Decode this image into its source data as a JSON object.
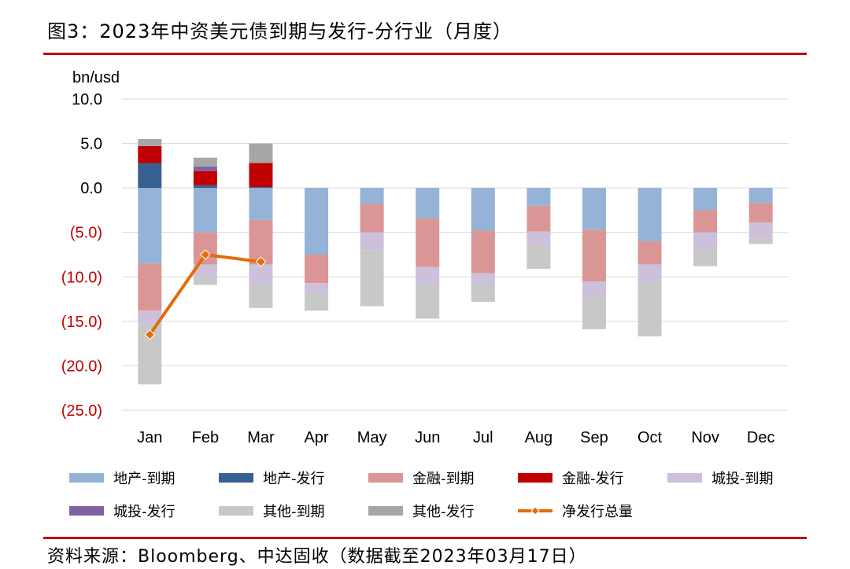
{
  "title": "图3：2023年中资美元债到期与发行-分行业（月度）",
  "source": "资料来源：Bloomberg、中达固收（数据截至2023年03月17日）",
  "chart_data": {
    "type": "bar",
    "stacked": true,
    "unit": "bn/usd",
    "ylim": [
      -25,
      10
    ],
    "yticks": [
      10,
      5,
      0,
      -5,
      -10,
      -15,
      -20,
      -25
    ],
    "ytick_labels": [
      "10.0",
      "5.0",
      "0.0",
      "(5.0)",
      "(10.0)",
      "(15.0)",
      "(20.0)",
      "(25.0)"
    ],
    "categories": [
      "Jan",
      "Feb",
      "Mar",
      "Apr",
      "May",
      "Jun",
      "Jul",
      "Aug",
      "Sep",
      "Oct",
      "Nov",
      "Dec"
    ],
    "grid": true,
    "legend_position": "bottom",
    "series": [
      {
        "name": "地产-到期",
        "color": "#95b3d7",
        "values": [
          -8.5,
          -5.0,
          -3.6,
          -7.5,
          -1.8,
          -3.4,
          -4.8,
          -2.0,
          -4.7,
          -6.0,
          -2.5,
          -1.7
        ]
      },
      {
        "name": "地产-发行",
        "color": "#376092",
        "values": [
          2.8,
          0.3,
          0.1,
          0,
          0,
          0,
          0,
          0,
          0,
          0,
          0,
          0
        ]
      },
      {
        "name": "金融-到期",
        "color": "#da9694",
        "values": [
          -5.3,
          -3.6,
          -5.0,
          -3.2,
          -3.2,
          -5.5,
          -4.8,
          -2.9,
          -5.8,
          -2.6,
          -2.5,
          -2.2
        ]
      },
      {
        "name": "金融-发行",
        "color": "#c00000",
        "values": [
          1.9,
          1.6,
          2.7,
          0,
          0,
          0,
          0,
          0,
          0,
          0,
          0,
          0
        ]
      },
      {
        "name": "城投-到期",
        "color": "#ccc0da",
        "values": [
          -1.5,
          -1.3,
          -2.2,
          -1.1,
          -2.0,
          -1.9,
          -1.3,
          -1.5,
          -1.8,
          -2.0,
          -1.8,
          -1.8
        ]
      },
      {
        "name": "城投-发行",
        "color": "#8064a2",
        "values": [
          0,
          0.5,
          0,
          0,
          0,
          0,
          0,
          0,
          0,
          0,
          0,
          0
        ]
      },
      {
        "name": "其他-到期",
        "color": "#c8c8c8",
        "values": [
          -6.8,
          -1.0,
          -2.7,
          -2.0,
          -6.3,
          -3.9,
          -1.9,
          -2.7,
          -3.6,
          -6.1,
          -2.0,
          -0.6
        ]
      },
      {
        "name": "其他-发行",
        "color": "#a6a6a6",
        "values": [
          0.8,
          1.0,
          2.2,
          0,
          0,
          0,
          0,
          0,
          0,
          0,
          0,
          0
        ]
      }
    ],
    "line_series": {
      "name": "净发行总量",
      "color": "#e36c09",
      "values": [
        -16.5,
        -7.5,
        -8.3
      ]
    }
  }
}
